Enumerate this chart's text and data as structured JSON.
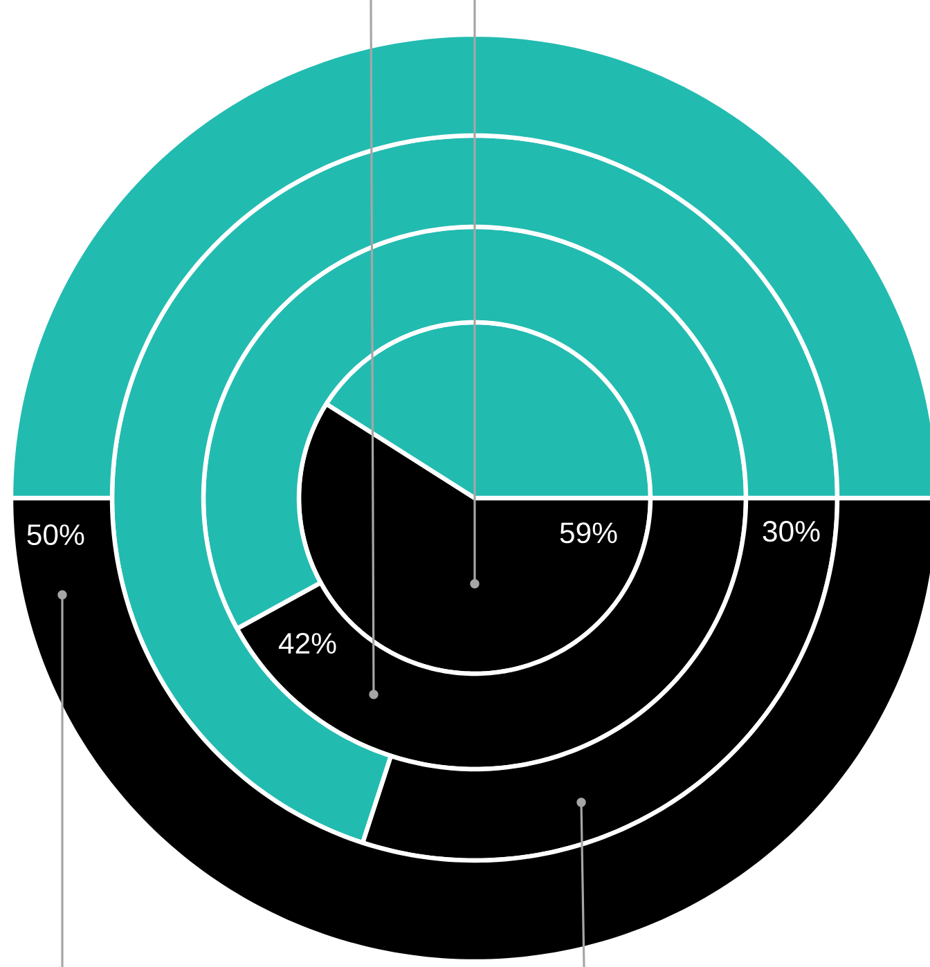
{
  "chart_data": {
    "type": "donut",
    "categories": [
      null,
      null
    ],
    "colors": [
      "#000000",
      "#22bbb0"
    ],
    "series": [
      {
        "values": [
          59,
          41
        ],
        "value_labels": [
          "59%",
          null
        ]
      },
      {
        "values": [
          42,
          58
        ],
        "value_labels": [
          "42%",
          null
        ]
      },
      {
        "values": [
          30,
          70
        ],
        "value_labels": [
          "30%",
          null
        ]
      },
      {
        "values": [
          50,
          50
        ],
        "value_labels": [
          "50%",
          null
        ]
      }
    ]
  }
}
